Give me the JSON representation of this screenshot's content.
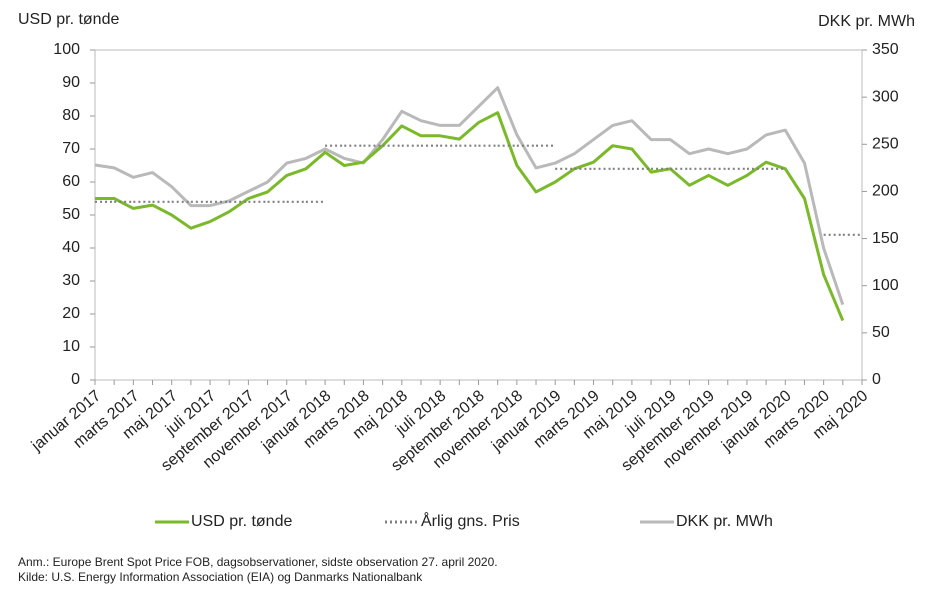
{
  "chart_data": {
    "type": "line",
    "y_label": "USD pr. tønde",
    "y2_label": "DKK pr. MWh",
    "categories": [
      "januar 2017",
      null,
      "marts 2017",
      null,
      "maj 2017",
      null,
      "juli 2017",
      null,
      "september 2017",
      null,
      "november 2017",
      null,
      "januar 2018",
      null,
      "marts 2018",
      null,
      "maj 2018",
      null,
      "juli 2018",
      null,
      "september 2018",
      null,
      "november 2018",
      null,
      "januar 2019",
      null,
      "marts 2019",
      null,
      "maj 2019",
      null,
      "juli 2019",
      null,
      "september 2019",
      null,
      "november 2019",
      null,
      "januar 2020",
      null,
      "marts 2020",
      null,
      "maj 2020"
    ],
    "series": [
      {
        "name": "USD pr. tønde",
        "color": "#7ab929",
        "axis": "y",
        "style": "solid",
        "values": [
          55,
          55,
          52,
          53,
          50,
          46,
          48,
          51,
          55,
          57,
          62,
          64,
          69,
          65,
          66,
          71,
          77,
          74,
          74,
          73,
          78,
          81,
          65,
          57,
          60,
          64,
          66,
          71,
          70,
          63,
          64,
          59,
          62,
          59,
          62,
          66,
          64,
          55,
          32,
          18,
          null
        ]
      },
      {
        "name": "Årlig gns. Pris",
        "color": "#808080",
        "axis": "y",
        "style": "dotted",
        "values": [
          54,
          54,
          54,
          54,
          54,
          54,
          54,
          54,
          54,
          54,
          54,
          54,
          71,
          71,
          71,
          71,
          71,
          71,
          71,
          71,
          71,
          71,
          71,
          71,
          64,
          64,
          64,
          64,
          64,
          64,
          64,
          64,
          64,
          64,
          64,
          64,
          null,
          null,
          44,
          44,
          null
        ]
      },
      {
        "name": "DKK pr. MWh",
        "color": "#b9b9b9",
        "axis": "y2",
        "style": "solid",
        "values": [
          228,
          225,
          215,
          220,
          205,
          185,
          185,
          190,
          200,
          210,
          230,
          235,
          245,
          235,
          230,
          255,
          285,
          275,
          270,
          270,
          290,
          310,
          260,
          225,
          230,
          240,
          255,
          270,
          275,
          255,
          255,
          240,
          245,
          240,
          245,
          260,
          265,
          230,
          140,
          80,
          null
        ]
      }
    ],
    "ylim": [
      0,
      100
    ],
    "yticks": [
      0,
      10,
      20,
      30,
      40,
      50,
      60,
      70,
      80,
      90,
      100
    ],
    "y2lim": [
      0,
      350
    ],
    "y2ticks": [
      0,
      50,
      100,
      150,
      200,
      250,
      300,
      350
    ],
    "grid": false,
    "legend": "bottom",
    "notes": [
      "Anm.: Europe Brent Spot Price FOB, dagsobservationer, sidste observation 27.  april 2020.",
      "Kilde: U.S. Energy Information Association (EIA) og Danmarks Nationalbank"
    ]
  }
}
